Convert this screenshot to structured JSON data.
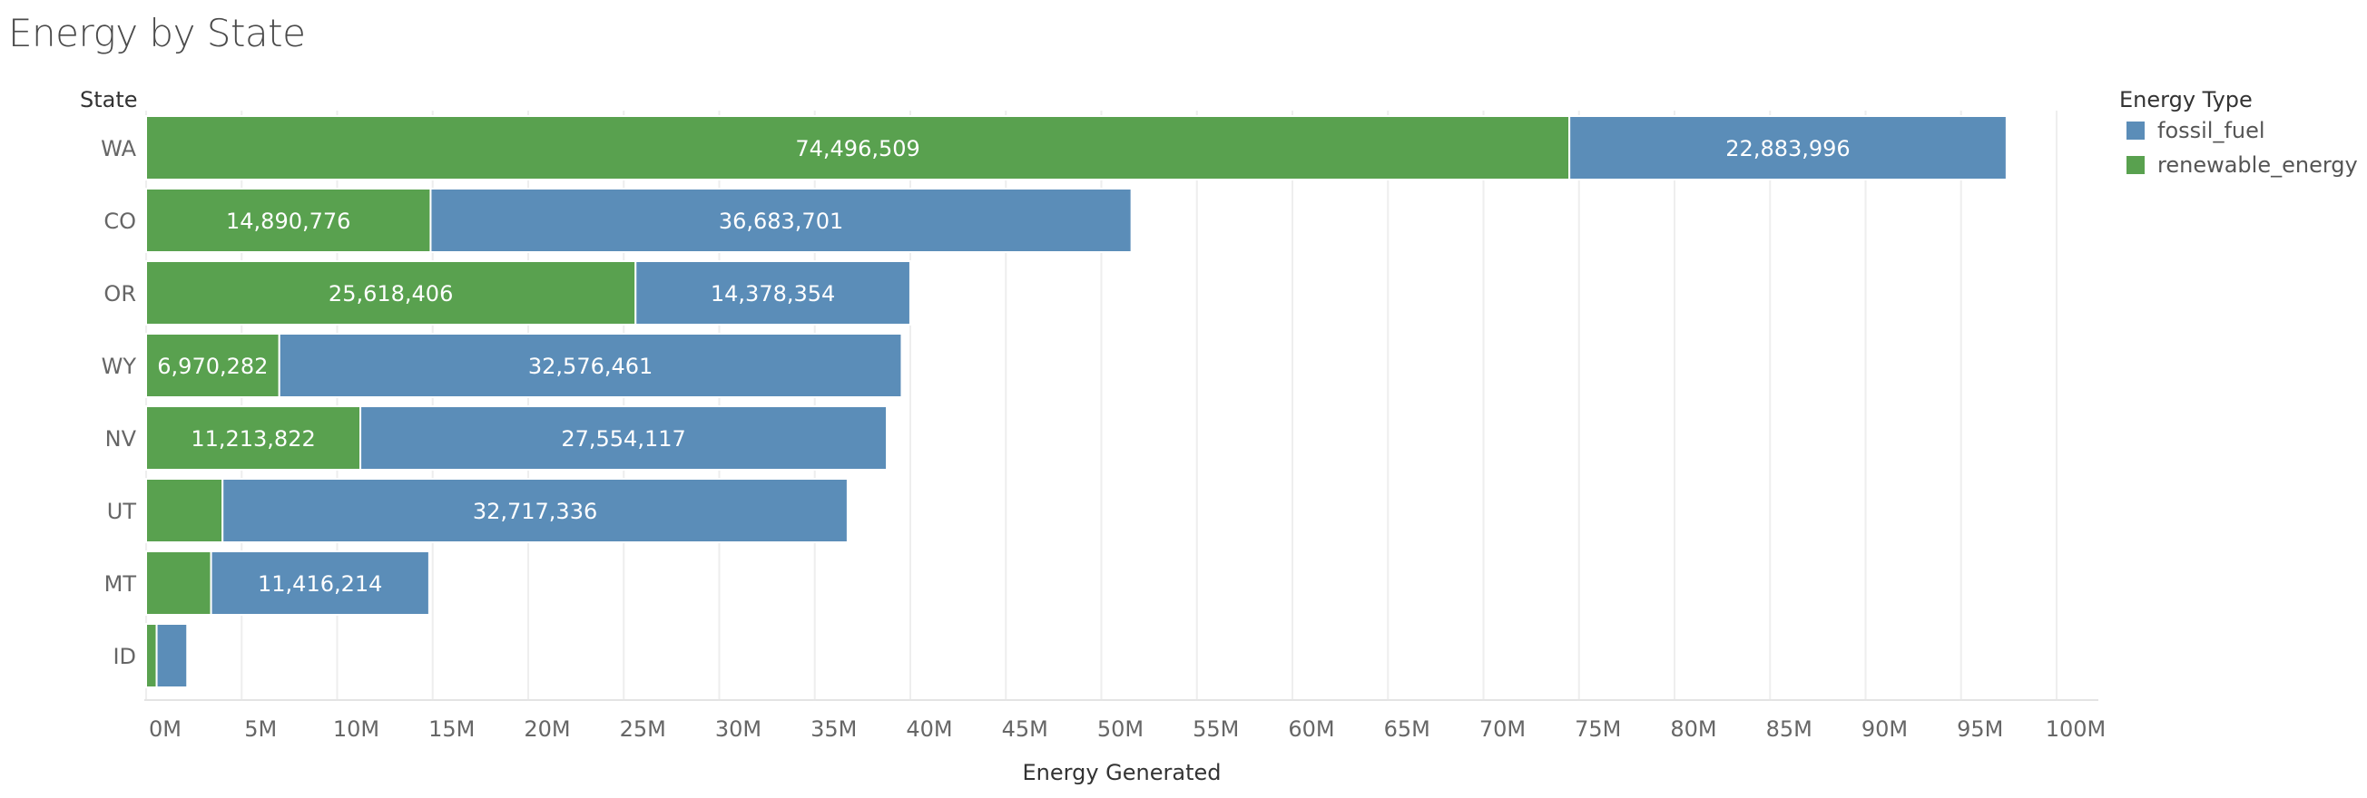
{
  "title": "Energy by State",
  "chart_data": {
    "type": "bar",
    "orientation": "horizontal",
    "stacked": true,
    "title": "Energy by State",
    "row_header": "State",
    "xlabel": "Energy Generated",
    "xlim": [
      0,
      100000000
    ],
    "x_ticks": [
      "0M",
      "5M",
      "10M",
      "15M",
      "20M",
      "25M",
      "30M",
      "35M",
      "40M",
      "45M",
      "50M",
      "55M",
      "60M",
      "65M",
      "70M",
      "75M",
      "80M",
      "85M",
      "90M",
      "95M",
      "100M"
    ],
    "grid": true,
    "legend_title": "Energy Type",
    "legend_position": "right",
    "categories": [
      "WA",
      "CO",
      "OR",
      "WY",
      "NV",
      "UT",
      "MT",
      "ID"
    ],
    "series": [
      {
        "name": "renewable_energy",
        "color": "#59a14f",
        "values": [
          74496509,
          14890776,
          25618406,
          6970282,
          11213822,
          4000000,
          3400000,
          550000
        ],
        "labels": [
          "74,496,509",
          "14,890,776",
          "25,618,406",
          "6,970,282",
          "11,213,822",
          "",
          "",
          ""
        ]
      },
      {
        "name": "fossil_fuel",
        "color": "#5b8db8",
        "values": [
          22883996,
          36683701,
          14378354,
          32576461,
          27554117,
          32717336,
          11416214,
          1600000
        ],
        "labels": [
          "22,883,996",
          "36,683,701",
          "14,378,354",
          "32,576,461",
          "27,554,117",
          "32,717,336",
          "11,416,214",
          ""
        ]
      }
    ],
    "legend_order": [
      "fossil_fuel",
      "renewable_energy"
    ]
  }
}
